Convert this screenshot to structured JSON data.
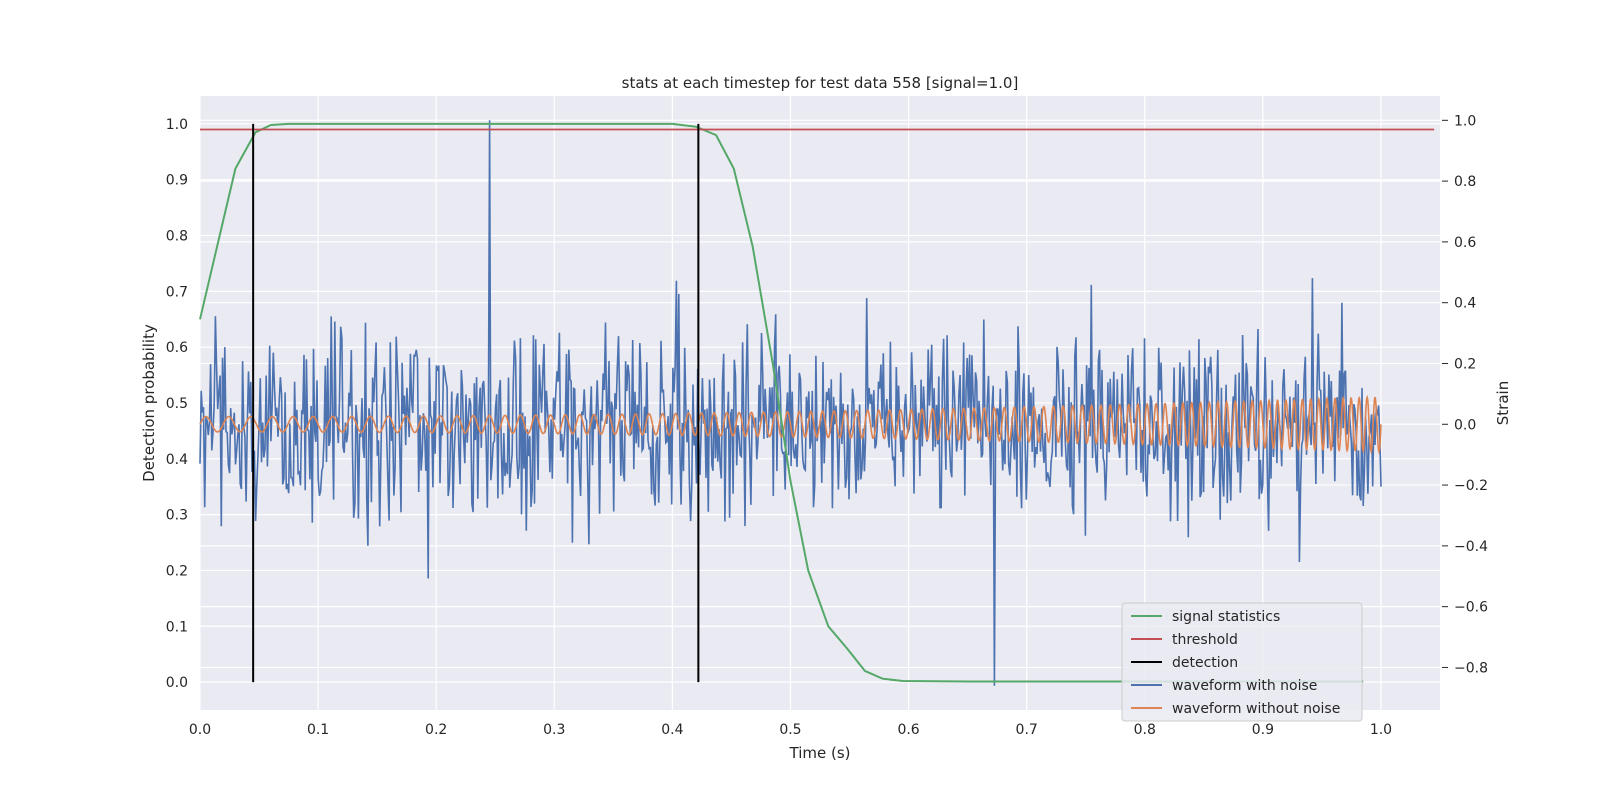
{
  "chart_data": {
    "type": "line",
    "title": "stats at each timestep for test data 558 [signal=1.0]",
    "xlabel": "Time (s)",
    "ylabel": "Detection probability",
    "ylabel_right": "Strain",
    "xlim": [
      0.0,
      1.05
    ],
    "ylim": [
      -0.05,
      1.05
    ],
    "ylim_right": [
      -0.94,
      1.08
    ],
    "xticks": [
      "0.0",
      "0.1",
      "0.2",
      "0.3",
      "0.4",
      "0.5",
      "0.6",
      "0.7",
      "0.8",
      "0.9",
      "1.0"
    ],
    "yticks": [
      "0.0",
      "0.1",
      "0.2",
      "0.3",
      "0.4",
      "0.5",
      "0.6",
      "0.7",
      "0.8",
      "0.9",
      "1.0"
    ],
    "yticks_right": [
      "−0.8",
      "−0.6",
      "−0.4",
      "−0.2",
      "0.0",
      "0.2",
      "0.4",
      "0.6",
      "0.8",
      "1.0"
    ],
    "grid": true,
    "legend_position": "lower-right",
    "series": [
      {
        "name": "signal statistics",
        "color": "#55a868",
        "axis": "left",
        "x": [
          0.0,
          0.03,
          0.047,
          0.06,
          0.075,
          0.1,
          0.2,
          0.3,
          0.4,
          0.42,
          0.437,
          0.452,
          0.468,
          0.485,
          0.5,
          0.515,
          0.532,
          0.548,
          0.563,
          0.578,
          0.595,
          0.65,
          0.7,
          0.8,
          0.9,
          0.985
        ],
        "values": [
          0.65,
          0.92,
          0.985,
          0.998,
          1.0,
          1.0,
          1.0,
          1.0,
          1.0,
          0.995,
          0.98,
          0.92,
          0.78,
          0.57,
          0.36,
          0.2,
          0.1,
          0.06,
          0.02,
          0.006,
          0.002,
          0.001,
          0.001,
          0.001,
          0.001,
          0.001
        ]
      },
      {
        "name": "threshold",
        "color": "#c44e52",
        "axis": "left",
        "x": [
          0.0,
          1.045
        ],
        "values": [
          0.99,
          0.99
        ]
      },
      {
        "name": "detection",
        "color": "#000000",
        "axis": "left",
        "x": [
          0.045,
          0.422
        ],
        "values": [
          1.0,
          1.0
        ]
      },
      {
        "name": "waveform with noise",
        "color": "#4c72b0",
        "axis": "right",
        "y_range": [
          -0.86,
          1.0
        ],
        "typical_amplitude": 0.28
      },
      {
        "name": "waveform without noise",
        "color": "#dd8452",
        "axis": "right",
        "amplitude_start": 0.025,
        "amplitude_end": 0.09,
        "cycles_start_per_s": 50,
        "cycles_end_per_s": 150
      }
    ]
  }
}
